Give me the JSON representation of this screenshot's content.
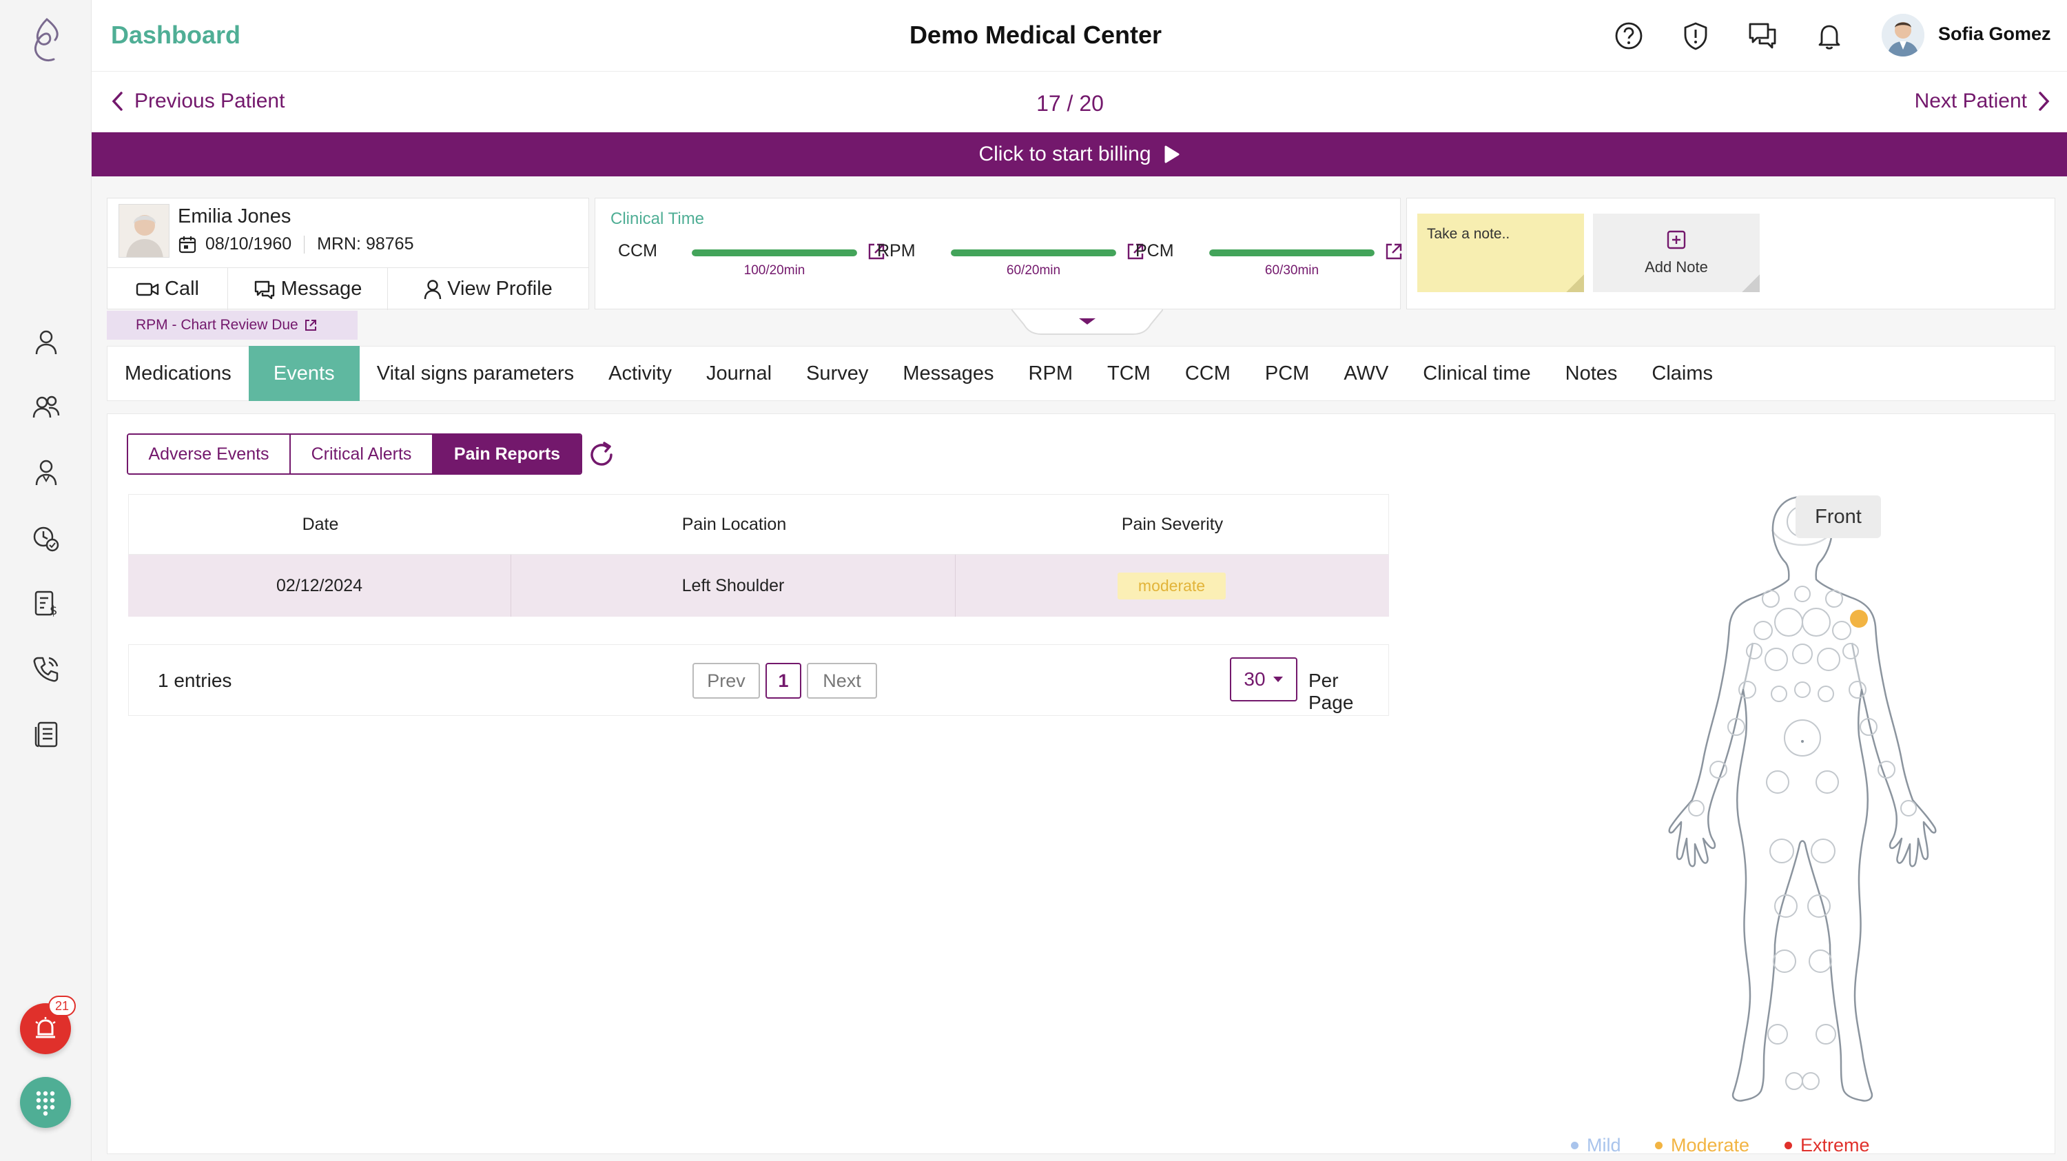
{
  "header": {
    "title": "Dashboard",
    "center_title": "Demo Medical Center",
    "user_name": "Sofia Gomez"
  },
  "patient_nav": {
    "prev_label": "Previous Patient",
    "count": "17 / 20",
    "next_label": "Next Patient"
  },
  "billing": {
    "label": "Click to start billing"
  },
  "patient": {
    "name": "Emilia Jones",
    "dob": "08/10/1960",
    "mrn": "MRN: 98765",
    "actions": {
      "call": "Call",
      "message": "Message",
      "profile": "View Profile"
    },
    "tag": "RPM - Chart Review Due"
  },
  "clinical_time": {
    "title": "Clinical Time",
    "items": [
      {
        "label": "CCM",
        "value": "100/20min",
        "progress": 1.0
      },
      {
        "label": "RPM",
        "value": "60/20min",
        "progress": 1.0
      },
      {
        "label": "PCM",
        "value": "60/30min",
        "progress": 1.0
      }
    ]
  },
  "notes": {
    "placeholder": "Take a note..",
    "add_label": "Add Note"
  },
  "tabs": [
    {
      "label": "Medications",
      "active": false
    },
    {
      "label": "Events",
      "active": true
    },
    {
      "label": "Vital signs parameters",
      "active": false
    },
    {
      "label": "Activity",
      "active": false
    },
    {
      "label": "Journal",
      "active": false
    },
    {
      "label": "Survey",
      "active": false
    },
    {
      "label": "Messages",
      "active": false
    },
    {
      "label": "RPM",
      "active": false
    },
    {
      "label": "TCM",
      "active": false
    },
    {
      "label": "CCM",
      "active": false
    },
    {
      "label": "PCM",
      "active": false
    },
    {
      "label": "AWV",
      "active": false
    },
    {
      "label": "Clinical time",
      "active": false
    },
    {
      "label": "Notes",
      "active": false
    },
    {
      "label": "Claims",
      "active": false
    }
  ],
  "event_filters": [
    {
      "label": "Adverse Events",
      "active": false
    },
    {
      "label": "Critical Alerts",
      "active": false
    },
    {
      "label": "Pain Reports",
      "active": true
    }
  ],
  "table": {
    "headers": [
      "Date",
      "Pain Location",
      "Pain Severity"
    ],
    "rows": [
      {
        "date": "02/12/2024",
        "location": "Left Shoulder",
        "severity": "moderate"
      }
    ]
  },
  "pagination": {
    "entries": "1 entries",
    "prev": "Prev",
    "page": "1",
    "next": "Next",
    "per_page_value": "30",
    "per_page_label": "Per Page"
  },
  "body_map": {
    "view_label": "Front",
    "legend": [
      {
        "label": "Mild",
        "color": "#a9c4ec"
      },
      {
        "label": "Moderate",
        "color": "#f2b443"
      },
      {
        "label": "Extreme",
        "color": "#e0302b"
      }
    ]
  },
  "alerts": {
    "count": "21"
  },
  "colors": {
    "brand": "#73186c",
    "accent": "#4fae95",
    "progress": "#43a45a"
  }
}
